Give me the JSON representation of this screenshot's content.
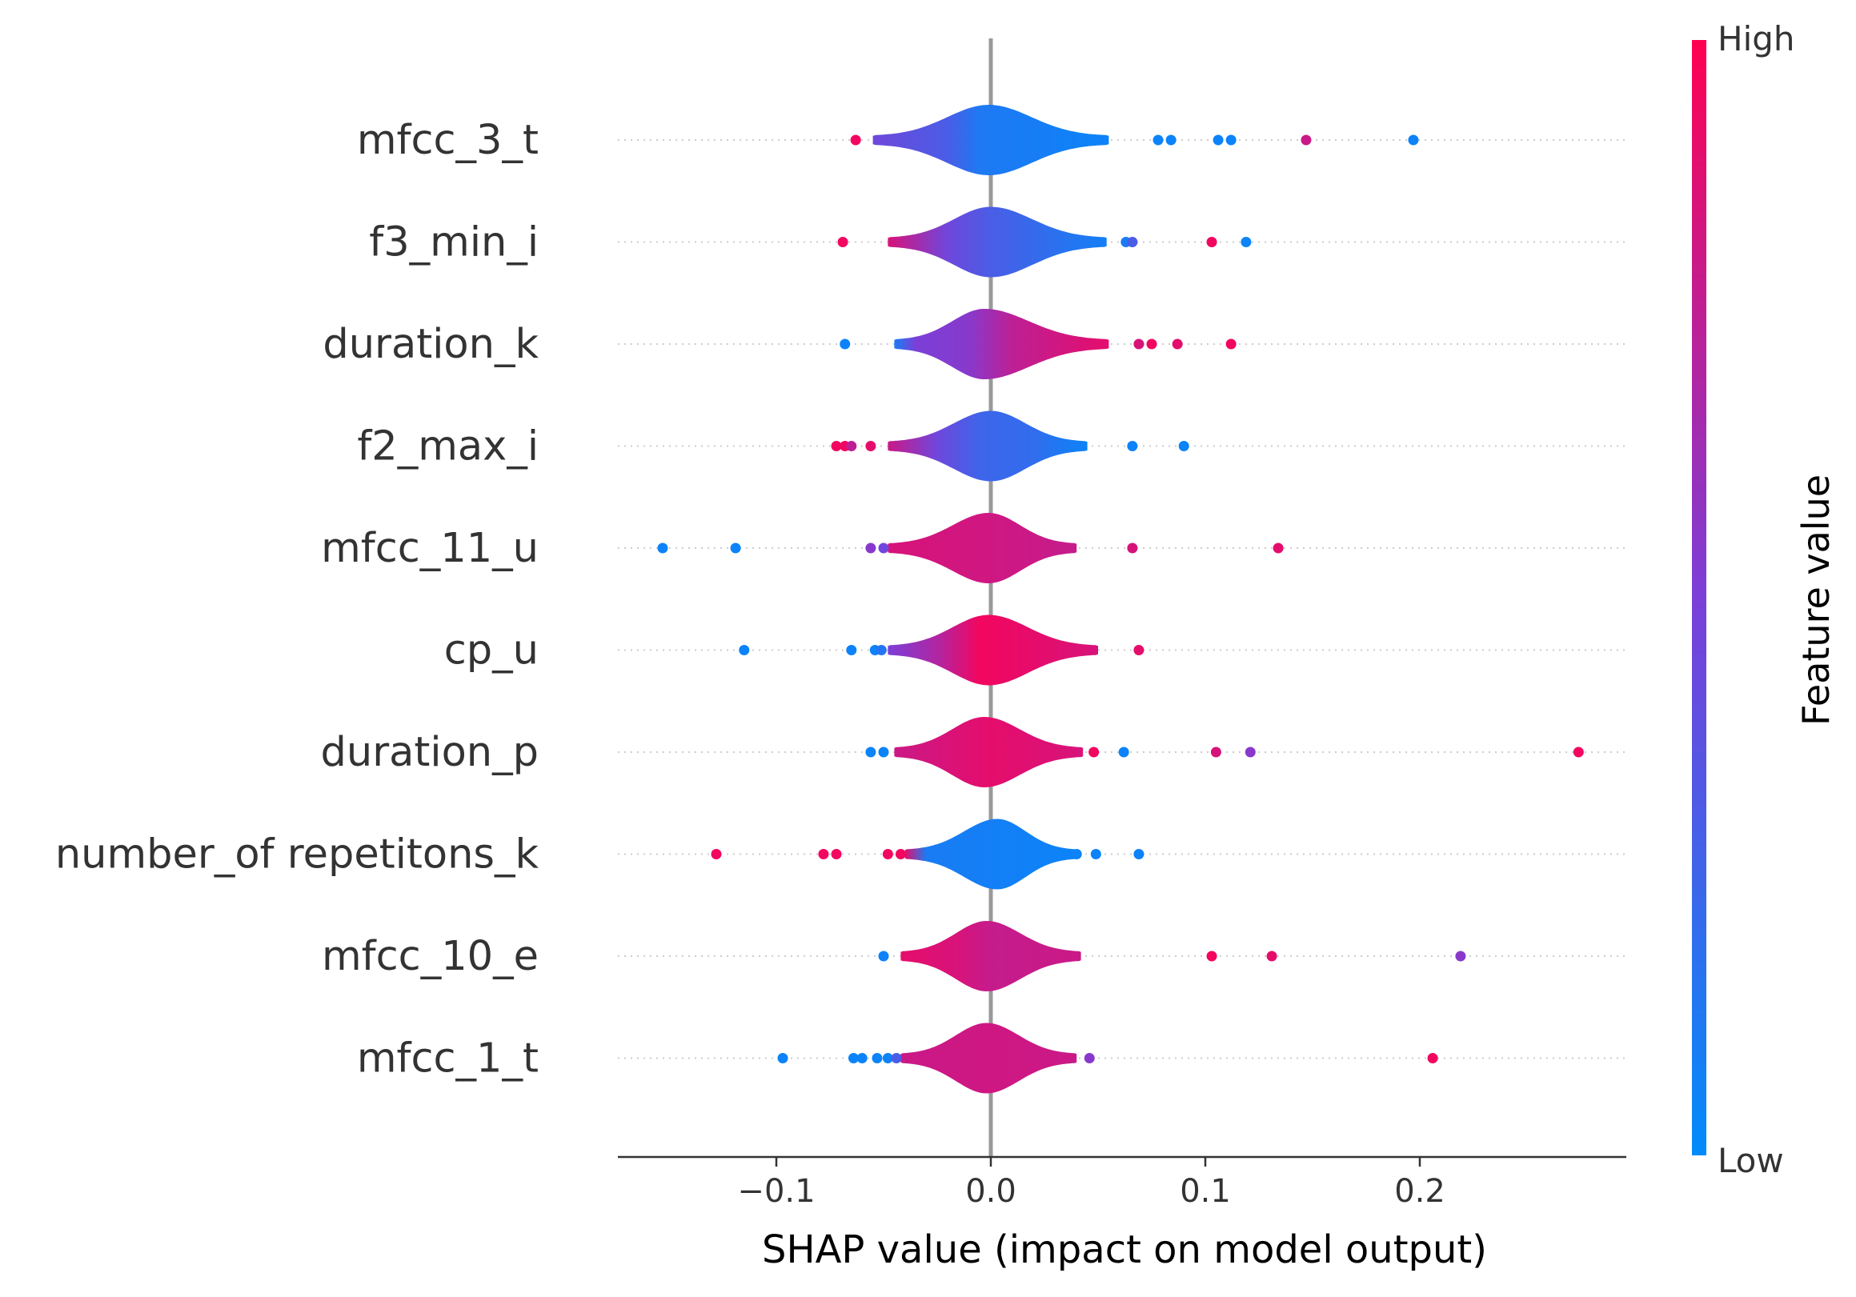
{
  "chart_data": {
    "type": "violin",
    "xlabel": "SHAP value (impact on model output)",
    "xlim": [
      -0.175,
      0.295
    ],
    "xticks": [
      {
        "value": -0.1,
        "label": "−0.1"
      },
      {
        "value": 0.0,
        "label": "0.0"
      },
      {
        "value": 0.1,
        "label": "0.1"
      },
      {
        "value": 0.2,
        "label": "0.2"
      }
    ],
    "colorbar": {
      "label": "Feature value",
      "high_label": "High",
      "low_label": "Low",
      "low_color": "#008bfb",
      "high_color": "#ff0051"
    },
    "features": [
      {
        "name": "mfcc_3_t",
        "violin_range": [
          -0.055,
          0.055
        ],
        "violin_peak": -0.001,
        "violin_halfheight": 0.52,
        "colors": [
          [
            -0.055,
            0.45
          ],
          [
            -0.02,
            0.3
          ],
          [
            -0.005,
            0.12
          ],
          [
            0.055,
            0.05
          ]
        ],
        "outliers": [
          [
            -0.063,
            0.95
          ],
          [
            0.078,
            0.05
          ],
          [
            0.084,
            0.05
          ],
          [
            0.106,
            0.05
          ],
          [
            0.112,
            0.05
          ],
          [
            0.147,
            0.8
          ],
          [
            0.197,
            0.05
          ]
        ]
      },
      {
        "name": "f3_min_i",
        "violin_range": [
          -0.048,
          0.054
        ],
        "violin_peak": 0.0,
        "violin_halfheight": 0.52,
        "colors": [
          [
            -0.048,
            0.85
          ],
          [
            -0.02,
            0.45
          ],
          [
            0.0,
            0.3
          ],
          [
            0.025,
            0.2
          ],
          [
            0.054,
            0.08
          ]
        ],
        "outliers": [
          [
            -0.069,
            0.95
          ],
          [
            0.063,
            0.1
          ],
          [
            0.066,
            0.3
          ],
          [
            0.103,
            0.95
          ],
          [
            0.119,
            0.05
          ]
        ]
      },
      {
        "name": "duration_k",
        "violin_range": [
          -0.045,
          0.055
        ],
        "violin_peak": -0.003,
        "violin_halfheight": 0.52,
        "colors": [
          [
            -0.045,
            0.1
          ],
          [
            -0.035,
            0.5
          ],
          [
            -0.01,
            0.55
          ],
          [
            0.01,
            0.75
          ],
          [
            0.055,
            0.9
          ]
        ],
        "outliers": [
          [
            -0.068,
            0.05
          ],
          [
            0.069,
            0.85
          ],
          [
            0.075,
            0.95
          ],
          [
            0.087,
            0.9
          ],
          [
            0.112,
            0.95
          ]
        ]
      },
      {
        "name": "f2_max_i",
        "violin_range": [
          -0.048,
          0.045
        ],
        "violin_peak": 0.0,
        "violin_halfheight": 0.52,
        "colors": [
          [
            -0.048,
            0.8
          ],
          [
            -0.025,
            0.45
          ],
          [
            -0.005,
            0.25
          ],
          [
            0.02,
            0.2
          ],
          [
            0.045,
            0.05
          ]
        ],
        "outliers": [
          [
            -0.072,
            0.95
          ],
          [
            -0.068,
            0.95
          ],
          [
            -0.065,
            0.75
          ],
          [
            -0.056,
            0.9
          ],
          [
            0.066,
            0.05
          ],
          [
            0.09,
            0.05
          ]
        ]
      },
      {
        "name": "mfcc_11_u",
        "violin_range": [
          -0.048,
          0.04
        ],
        "violin_peak": -0.001,
        "violin_halfheight": 0.52,
        "colors": [
          [
            -0.048,
            0.85
          ],
          [
            0.0,
            0.82
          ],
          [
            0.04,
            0.78
          ]
        ],
        "outliers": [
          [
            -0.153,
            0.05
          ],
          [
            -0.119,
            0.05
          ],
          [
            -0.056,
            0.55
          ],
          [
            -0.05,
            0.45
          ],
          [
            0.066,
            0.85
          ],
          [
            0.134,
            0.9
          ]
        ]
      },
      {
        "name": "cp_u",
        "violin_range": [
          -0.048,
          0.05
        ],
        "violin_peak": -0.001,
        "violin_halfheight": 0.52,
        "colors": [
          [
            -0.048,
            0.5
          ],
          [
            -0.025,
            0.7
          ],
          [
            -0.005,
            0.95
          ],
          [
            0.05,
            0.85
          ]
        ],
        "outliers": [
          [
            -0.115,
            0.05
          ],
          [
            -0.065,
            0.05
          ],
          [
            -0.054,
            0.05
          ],
          [
            -0.051,
            0.15
          ],
          [
            0.069,
            0.9
          ]
        ]
      },
      {
        "name": "duration_p",
        "violin_range": [
          -0.045,
          0.043
        ],
        "violin_peak": -0.003,
        "violin_halfheight": 0.52,
        "colors": [
          [
            -0.045,
            0.8
          ],
          [
            0.0,
            0.9
          ],
          [
            0.043,
            0.85
          ]
        ],
        "outliers": [
          [
            -0.056,
            0.05
          ],
          [
            -0.05,
            0.05
          ],
          [
            0.048,
            0.95
          ],
          [
            0.062,
            0.05
          ],
          [
            0.105,
            0.85
          ],
          [
            0.121,
            0.55
          ],
          [
            0.274,
            0.95
          ]
        ]
      },
      {
        "name": "number_of repetitons_k",
        "violin_range": [
          -0.04,
          0.04
        ],
        "violin_peak": 0.003,
        "violin_halfheight": 0.52,
        "colors": [
          [
            -0.04,
            0.9
          ],
          [
            -0.03,
            0.1
          ],
          [
            0.04,
            0.05
          ]
        ],
        "outliers": [
          [
            -0.128,
            0.95
          ],
          [
            -0.078,
            0.95
          ],
          [
            -0.072,
            0.95
          ],
          [
            -0.048,
            0.95
          ],
          [
            -0.042,
            0.95
          ],
          [
            0.04,
            0.05
          ],
          [
            0.049,
            0.05
          ],
          [
            0.069,
            0.05
          ]
        ]
      },
      {
        "name": "mfcc_10_e",
        "violin_range": [
          -0.042,
          0.042
        ],
        "violin_peak": -0.002,
        "violin_halfheight": 0.52,
        "colors": [
          [
            -0.042,
            0.9
          ],
          [
            -0.015,
            0.85
          ],
          [
            0.0,
            0.78
          ],
          [
            0.042,
            0.8
          ]
        ],
        "outliers": [
          [
            -0.05,
            0.05
          ],
          [
            0.103,
            0.95
          ],
          [
            0.131,
            0.9
          ],
          [
            0.219,
            0.55
          ]
        ]
      },
      {
        "name": "mfcc_1_t",
        "violin_range": [
          -0.042,
          0.04
        ],
        "violin_peak": -0.002,
        "violin_halfheight": 0.52,
        "colors": [
          [
            -0.042,
            0.8
          ],
          [
            0.0,
            0.82
          ],
          [
            0.04,
            0.8
          ]
        ],
        "outliers": [
          [
            -0.097,
            0.05
          ],
          [
            -0.064,
            0.05
          ],
          [
            -0.06,
            0.05
          ],
          [
            -0.053,
            0.05
          ],
          [
            -0.048,
            0.05
          ],
          [
            -0.044,
            0.3
          ],
          [
            0.046,
            0.55
          ],
          [
            0.206,
            0.95
          ]
        ]
      }
    ]
  }
}
